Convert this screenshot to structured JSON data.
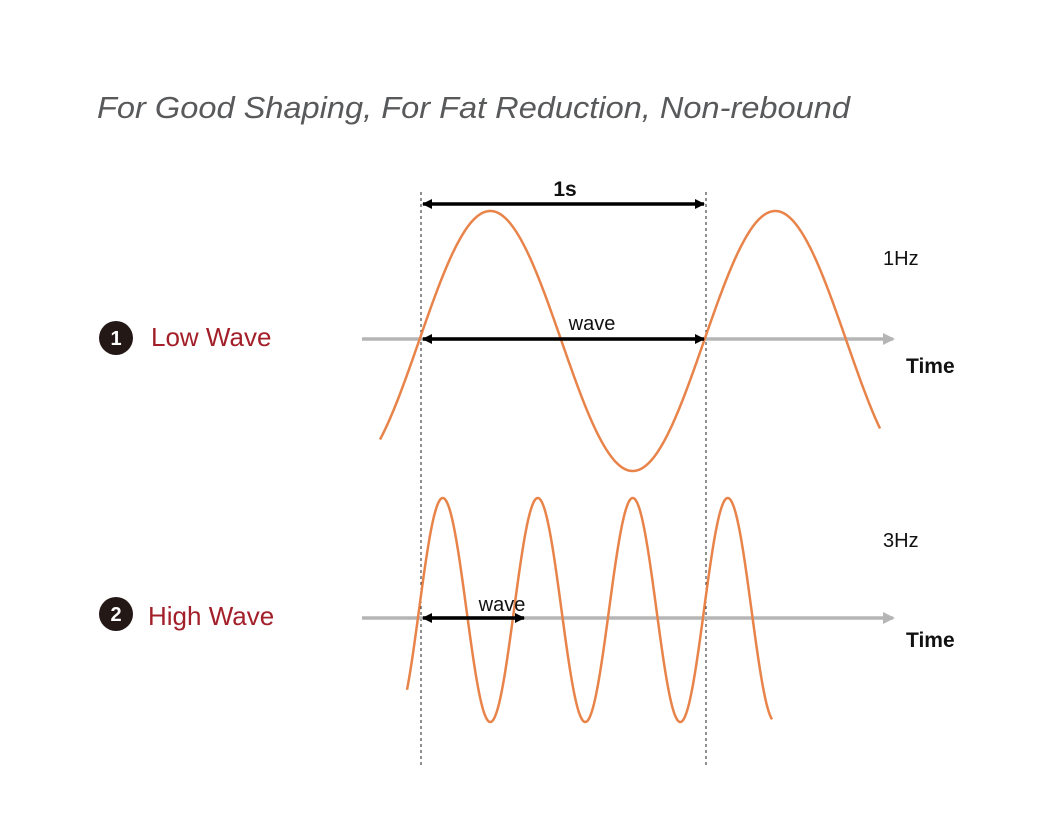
{
  "title": "For Good Shaping, For Fat Reduction, Non-rebound",
  "period_label": "1s",
  "colors": {
    "wave": "#e8834a",
    "label": "#a3202a",
    "axis": "#b5b5b5",
    "title": "#58595b"
  },
  "rows": [
    {
      "number": "1",
      "label": "Low Wave",
      "frequency": "1Hz",
      "wave_label": "wave",
      "axis_label": "Time",
      "cycles_per_second": 1
    },
    {
      "number": "2",
      "label": "High Wave",
      "frequency": "3Hz",
      "wave_label": "wave",
      "axis_label": "Time",
      "cycles_per_second": 3
    }
  ]
}
